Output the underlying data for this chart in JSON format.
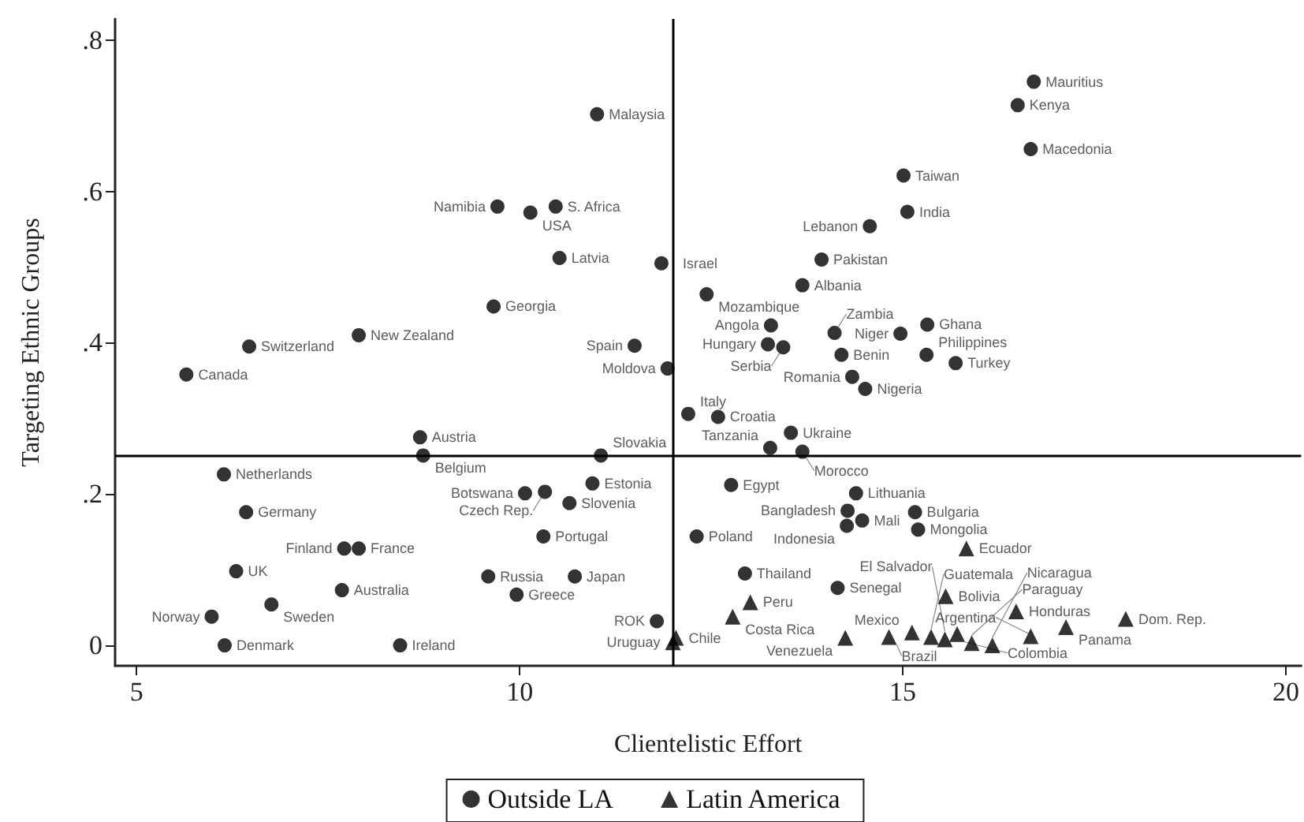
{
  "chart_data": {
    "type": "scatter",
    "xlabel": "Clientelistic Effort",
    "ylabel": "Targeting Ethnic Groups",
    "xlim": [
      4.72,
      20.2
    ],
    "ylim": [
      -0.027,
      0.828
    ],
    "xticks": [
      5,
      10,
      15,
      20
    ],
    "yticks": [
      {
        "value": 0,
        "label": "0"
      },
      {
        "value": 0.2,
        "label": ".2"
      },
      {
        "value": 0.4,
        "label": ".4"
      },
      {
        "value": 0.6,
        "label": ".6"
      },
      {
        "value": 0.8,
        "label": ".8"
      }
    ],
    "grid": false,
    "legend": "bottom",
    "ref_lines": [
      {
        "axis": "x",
        "value": 12,
        "color": "#000000"
      },
      {
        "axis": "y",
        "value": 0.25,
        "color": "#000000"
      }
    ],
    "series": [
      {
        "name": "Outside LA",
        "color": "#000000",
        "marker": "circle",
        "x": [
          11.01,
          9.71,
          10.14,
          10.47,
          10.52,
          9.66,
          7.9,
          6.47,
          5.65,
          11.5,
          11.85,
          16.71,
          16.5,
          16.67,
          15.01,
          15.06,
          14.57,
          13.94,
          13.69,
          12.44,
          13.28,
          14.11,
          14.97,
          15.32,
          13.24,
          13.44,
          14.2,
          15.31,
          15.69,
          14.34,
          14.51,
          11.93,
          12.2,
          12.59,
          8.7,
          8.74,
          11.06,
          6.14,
          6.43,
          10.95,
          10.07,
          10.33,
          10.65,
          10.31,
          7.71,
          7.9,
          6.3,
          7.68,
          6.76,
          5.98,
          6.15,
          8.44,
          9.59,
          9.96,
          10.72,
          11.79,
          12.76,
          13.54,
          13.27,
          13.69,
          14.39,
          14.28,
          14.47,
          14.27,
          15.16,
          15.2,
          12.31,
          12.94,
          14.15
        ],
        "values": [
          0.702,
          0.58,
          0.572,
          0.58,
          0.512,
          0.448,
          0.41,
          0.395,
          0.358,
          0.396,
          0.505,
          0.745,
          0.714,
          0.656,
          0.621,
          0.573,
          0.554,
          0.51,
          0.476,
          0.464,
          0.423,
          0.413,
          0.412,
          0.424,
          0.398,
          0.394,
          0.384,
          0.384,
          0.373,
          0.355,
          0.339,
          0.366,
          0.306,
          0.302,
          0.275,
          0.251,
          0.251,
          0.226,
          0.176,
          0.214,
          0.201,
          0.203,
          0.188,
          0.144,
          0.128,
          0.128,
          0.098,
          0.073,
          0.054,
          0.038,
          0,
          0,
          0.091,
          0.067,
          0.091,
          0.032,
          0.212,
          0.281,
          0.261,
          0.256,
          0.201,
          0.178,
          0.165,
          0.158,
          0.176,
          0.153,
          0.144,
          0.095,
          0.076
        ],
        "value_labels": [
          "Malaysia",
          "Namibia",
          "USA",
          "S. Africa",
          "Latvia",
          "Georgia",
          "New Zealand",
          "Switzerland",
          "Canada",
          "Spain",
          "Israel",
          "Mauritius",
          "Kenya",
          "Macedonia",
          "Taiwan",
          "India",
          "Lebanon",
          "Pakistan",
          "Albania",
          "Mozambique",
          "Angola",
          "Zambia",
          "Niger",
          "Ghana",
          "Hungary",
          "Serbia",
          "Benin",
          "Philippines",
          "Turkey",
          "Romania",
          "Nigeria",
          "Moldova",
          "Italy",
          "Croatia",
          "Austria",
          "Belgium",
          "Slovakia",
          "Netherlands",
          "Germany",
          "Estonia",
          "Botswana",
          "Czech Rep.",
          "Slovenia",
          "Portugal",
          "Finland",
          "France",
          "UK",
          "Australia",
          "Sweden",
          "Norway",
          "Denmark",
          "Ireland",
          "Russia",
          "Greece",
          "Japan",
          "ROK",
          "Egypt",
          "Ukraine",
          "Tanzania",
          "Morocco",
          "Lithuania",
          "Bangladesh",
          "Mali",
          "Indonesia",
          "Bulgaria",
          "Mongolia",
          "Poland",
          "Thailand",
          "Senegal"
        ]
      },
      {
        "name": "Latin America",
        "color": "#000000",
        "marker": "triangle",
        "x": [
          15.83,
          15.56,
          16.48,
          17.13,
          17.91,
          13.01,
          12.78,
          12.04,
          12.0,
          14.25,
          14.82,
          15.12,
          15.37,
          15.55,
          15.71,
          15.9,
          16.17,
          16.67
        ],
        "values": [
          0.128,
          0.065,
          0.045,
          0.024,
          0.035,
          0.057,
          0.038,
          0.01,
          0.004,
          0.01,
          0.011,
          0.017,
          0.011,
          0.008,
          0.015,
          0.003,
          0.0,
          0.012
        ],
        "value_labels": [
          "Ecuador",
          "Bolivia",
          "Honduras",
          "Panama",
          "Dom. Rep.",
          "Peru",
          "Costa Rica",
          "Chile",
          "Uruguay",
          "Venezuela",
          "Brazil",
          "Mexico",
          "Guatemala",
          "El Salvador",
          "Colombia",
          "Paraguay",
          "Nicaragua",
          "Argentina"
        ]
      }
    ]
  }
}
